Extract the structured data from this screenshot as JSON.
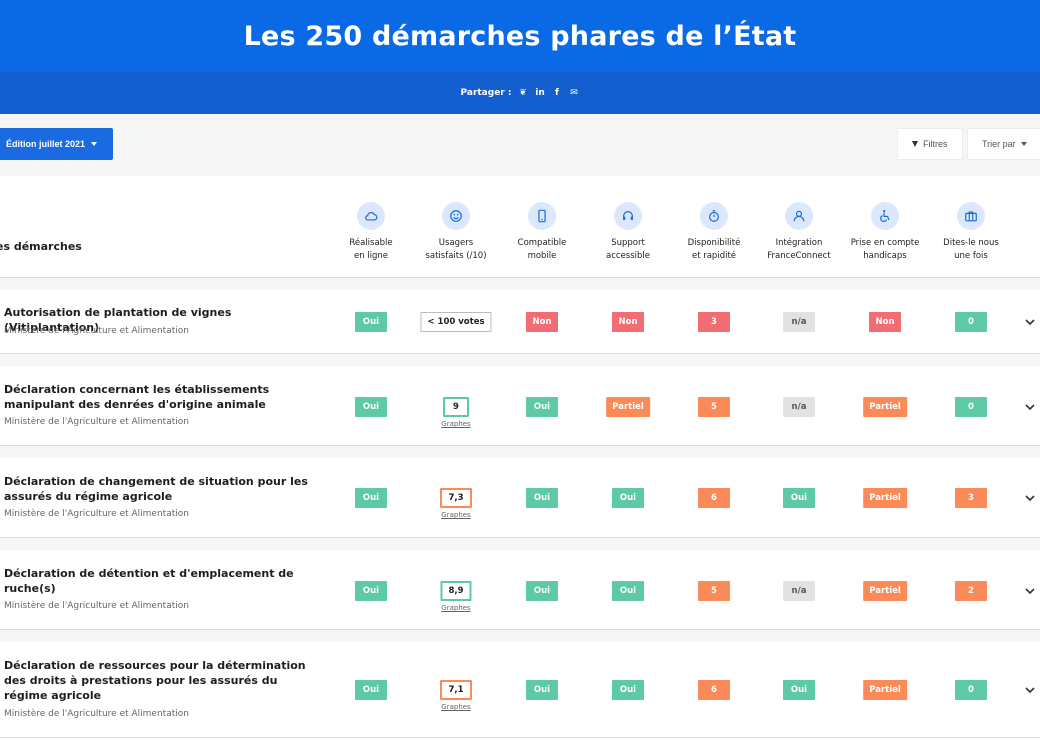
{
  "header": {
    "title": "Les 250 démarches phares de l’État"
  },
  "share": {
    "label": "Partager :",
    "icons": [
      {
        "name": "twitter-icon",
        "glyph": "❦"
      },
      {
        "name": "linkedin-icon",
        "glyph": "in"
      },
      {
        "name": "facebook-icon",
        "glyph": "f"
      },
      {
        "name": "mail-icon",
        "glyph": "✉"
      }
    ]
  },
  "toolbar": {
    "edition_label": "Édition juillet 2021",
    "filters_label": "Filtres",
    "sort_label": "Trier par"
  },
  "table": {
    "first_column": "es démarches",
    "columns": [
      {
        "label": "Réalisable\nen ligne",
        "icon": "cloud-icon"
      },
      {
        "label": "Usagers\nsatisfaits (/10)",
        "icon": "smiley-icon"
      },
      {
        "label": "Compatible\nmobile",
        "icon": "mobile-icon"
      },
      {
        "label": "Support\naccessible",
        "icon": "headset-icon"
      },
      {
        "label": "Disponibilité\net rapidité",
        "icon": "stopwatch-icon"
      },
      {
        "label": "Intégration\nFranceConnect",
        "icon": "user-icon"
      },
      {
        "label": "Prise en compte\nhandicaps",
        "icon": "wheelchair-icon"
      },
      {
        "label": "Dites-le nous\nune fois",
        "icon": "briefcase-icon"
      }
    ],
    "graph_link_label": "Graphes",
    "rows": [
      {
        "title": "Autorisation de plantation de vignes (Vitiplantation)",
        "ministry": "Ministère de l'Agriculture et Alimentation",
        "cells": [
          "Oui",
          "< 100 votes",
          "Non",
          "Non",
          "3",
          "n/a",
          "Non",
          "0"
        ],
        "styles": [
          "green",
          "outline",
          "red",
          "red",
          "red",
          "grey",
          "red",
          "green"
        ],
        "has_graph": false
      },
      {
        "title": "Déclaration concernant les établissements manipulant des denrées d'origine animale",
        "ministry": "Ministère de l'Agriculture et Alimentation",
        "cells": [
          "Oui",
          "9",
          "Oui",
          "Partiel",
          "5",
          "n/a",
          "Partiel",
          "0"
        ],
        "styles": [
          "green",
          "out-green",
          "green",
          "orange",
          "orange",
          "grey",
          "orange",
          "green"
        ],
        "has_graph": true
      },
      {
        "title": "Déclaration de changement de situation pour les assurés du régime agricole",
        "ministry": "Ministère de l'Agriculture et Alimentation",
        "cells": [
          "Oui",
          "7,3",
          "Oui",
          "Oui",
          "6",
          "Oui",
          "Partiel",
          "3"
        ],
        "styles": [
          "green",
          "out-orange",
          "green",
          "green",
          "orange",
          "green",
          "orange",
          "orange"
        ],
        "has_graph": true
      },
      {
        "title": "Déclaration de détention et d'emplacement de ruche(s)",
        "ministry": "Ministère de l'Agriculture et Alimentation",
        "cells": [
          "Oui",
          "8,9",
          "Oui",
          "Oui",
          "5",
          "n/a",
          "Partiel",
          "2"
        ],
        "styles": [
          "green",
          "out-green",
          "green",
          "green",
          "orange",
          "grey",
          "orange",
          "orange"
        ],
        "has_graph": true
      },
      {
        "title": "Déclaration de ressources pour la détermination des droits à prestations pour les assurés du régime agricole",
        "ministry": "Ministère de l'Agriculture et Alimentation",
        "cells": [
          "Oui",
          "7,1",
          "Oui",
          "Oui",
          "6",
          "Oui",
          "Partiel",
          "0"
        ],
        "styles": [
          "green",
          "out-orange",
          "green",
          "green",
          "orange",
          "green",
          "orange",
          "green"
        ],
        "has_graph": true
      }
    ]
  }
}
